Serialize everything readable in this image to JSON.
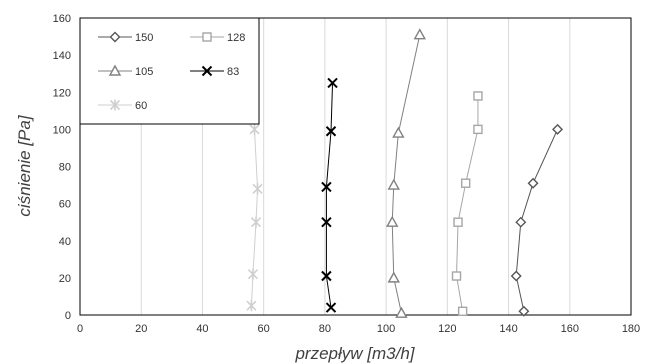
{
  "chart_data": {
    "type": "scatter",
    "title": "",
    "xlabel": "przepływ [m3/h]",
    "ylabel": "ciśnienie [Pa]",
    "xlim": [
      0,
      180
    ],
    "ylim": [
      0,
      160
    ],
    "xticks": [
      "0",
      "20",
      "40",
      "60",
      "80",
      "100",
      "120",
      "140",
      "160",
      "180"
    ],
    "yticks": [
      "0",
      "20",
      "40",
      "60",
      "80",
      "100",
      "120",
      "140",
      "160"
    ],
    "grid": "vertical",
    "legend_position": "top-left",
    "series": [
      {
        "name": "150",
        "marker": "diamond",
        "color": "#555555",
        "points": [
          [
            145,
            2
          ],
          [
            142.5,
            21
          ],
          [
            144,
            50
          ],
          [
            148,
            71
          ],
          [
            156,
            100
          ]
        ]
      },
      {
        "name": "128",
        "marker": "square",
        "color": "#a6a6a6",
        "points": [
          [
            125,
            2
          ],
          [
            123,
            21
          ],
          [
            123.5,
            50
          ],
          [
            126,
            71
          ],
          [
            130,
            100
          ],
          [
            130,
            118
          ]
        ]
      },
      {
        "name": "105",
        "marker": "triangle",
        "color": "#808080",
        "points": [
          [
            105,
            1
          ],
          [
            102.5,
            20
          ],
          [
            102,
            50
          ],
          [
            102.5,
            70
          ],
          [
            104,
            98
          ],
          [
            111,
            151
          ]
        ]
      },
      {
        "name": "83",
        "marker": "x",
        "color": "#000000",
        "points": [
          [
            82,
            4
          ],
          [
            80.5,
            21
          ],
          [
            80.5,
            50
          ],
          [
            80.5,
            69
          ],
          [
            82,
            99
          ],
          [
            82.5,
            125
          ]
        ]
      },
      {
        "name": "60",
        "marker": "star",
        "color": "#cfcfcf",
        "points": [
          [
            56,
            5
          ],
          [
            56.5,
            22
          ],
          [
            57.5,
            50
          ],
          [
            58,
            68
          ],
          [
            57,
            100
          ]
        ]
      }
    ]
  }
}
